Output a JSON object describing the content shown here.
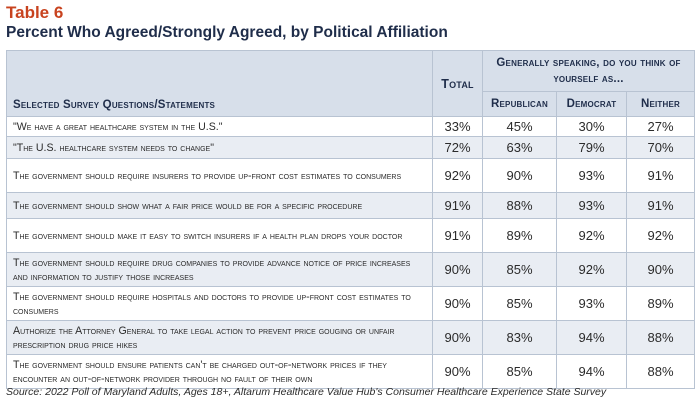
{
  "table_label": "Table 6",
  "title": "Percent Who Agreed/Strongly Agreed, by Political Affiliation",
  "header": {
    "questions": "Selected Survey Questions/Statements",
    "total": "Total",
    "group": "Generally speaking, do you think of yourself as...",
    "republican": "Republican",
    "democrat": "Democrat",
    "neither": "Neither"
  },
  "rows": [
    {
      "q": "\"We have a great healthcare system in the U.S.\"",
      "total": "33%",
      "rep": "45%",
      "dem": "30%",
      "nei": "27%"
    },
    {
      "q": "\"The U.S. healthcare system needs to change\"",
      "total": "72%",
      "rep": "63%",
      "dem": "79%",
      "nei": "70%"
    },
    {
      "q": "The government should require insurers to provide up-front cost estimates to consumers",
      "total": "92%",
      "rep": "90%",
      "dem": "93%",
      "nei": "91%"
    },
    {
      "q": "The government should show what a fair price would be for a specific procedure",
      "total": "91%",
      "rep": "88%",
      "dem": "93%",
      "nei": "91%"
    },
    {
      "q": "The government should make it easy to switch insurers if a health plan drops your doctor",
      "total": "91%",
      "rep": "89%",
      "dem": "92%",
      "nei": "92%"
    },
    {
      "q": "The government should require drug companies to provide advance notice of price increases and information to justify those increases",
      "total": "90%",
      "rep": "85%",
      "dem": "92%",
      "nei": "90%"
    },
    {
      "q": "The government should require hospitals and doctors to provide up-front cost estimates to consumers",
      "total": "90%",
      "rep": "85%",
      "dem": "93%",
      "nei": "89%"
    },
    {
      "q": "Authorize the Attorney General to take legal action to prevent price gouging or unfair prescription drug price hikes",
      "total": "90%",
      "rep": "83%",
      "dem": "94%",
      "nei": "88%"
    },
    {
      "q": "The government should ensure patients can't be charged out-of-network prices if they encounter an out-of-network provider through no fault of their own",
      "total": "90%",
      "rep": "85%",
      "dem": "94%",
      "nei": "88%"
    }
  ],
  "source": "Source: 2022 Poll of Maryland Adults, Ages 18+, Altarum Healthcare Value Hub's Consumer Healthcare Experience State Survey"
}
